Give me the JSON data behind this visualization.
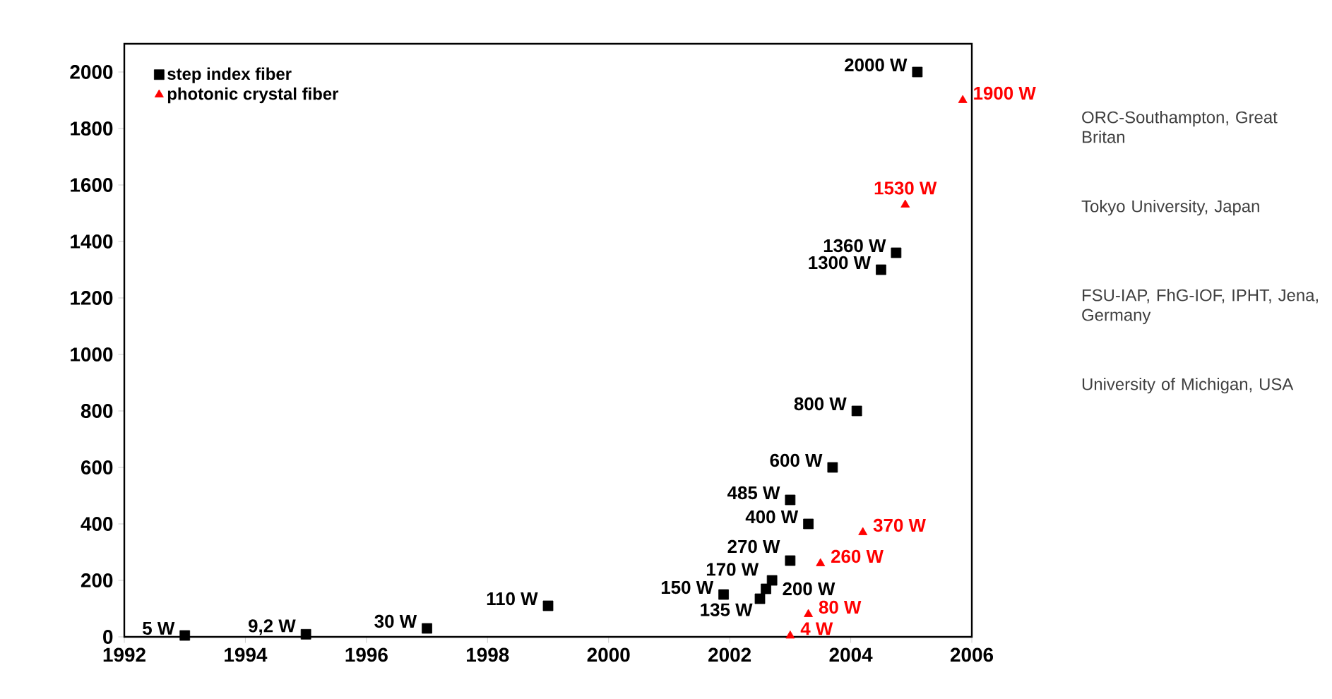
{
  "chart_data": {
    "type": "scatter",
    "legend": "top left",
    "grid": false,
    "xlim": [
      1992,
      2006
    ],
    "xticks": [
      1992,
      1994,
      1996,
      1998,
      2000,
      2002,
      2004,
      2006
    ],
    "ylim": [
      0,
      2100
    ],
    "yticks": [
      0,
      200,
      400,
      600,
      800,
      1000,
      1200,
      1400,
      1600,
      1800,
      2000
    ],
    "series": [
      {
        "name": "step index fiber",
        "color": "#000000",
        "marker": "square",
        "x": [
          1993.0,
          1995.0,
          1997.0,
          1999.0,
          2001.9,
          2002.5,
          2002.6,
          2002.7,
          2003.0,
          2003.0,
          2003.3,
          2003.7,
          2004.1,
          2004.5,
          2004.75,
          2005.1
        ],
        "values": [
          5,
          9.2,
          30,
          110,
          150,
          135,
          170,
          200,
          270,
          485,
          400,
          600,
          800,
          1300,
          1360,
          2000
        ],
        "value_labels": [
          "5 W",
          "9,2 W",
          "30 W",
          "110 W",
          "150 W",
          "135 W",
          "170 W",
          "200 W",
          "270 W",
          "485 W",
          "400 W",
          "600 W",
          "800 W",
          "1300 W",
          "1360 W",
          "2000 W"
        ]
      },
      {
        "name": "photonic crystal fiber",
        "color": "#ff0000",
        "marker": "triangle",
        "x": [
          2003.0,
          2003.3,
          2003.5,
          2004.2,
          2004.9,
          2005.85
        ],
        "values": [
          4,
          80,
          260,
          370,
          1530,
          1900
        ],
        "value_labels": [
          "4 W",
          "80 W",
          "260 W",
          "370 W",
          "1530 W",
          "1900 W"
        ]
      }
    ],
    "annotations": [
      "ORC-Southampton, Great Britan",
      "Tokyo University, Japan",
      "FSU-IAP, FhG-IOF, IPHT, Jena, Germany",
      "University of Michigan, USA"
    ]
  }
}
